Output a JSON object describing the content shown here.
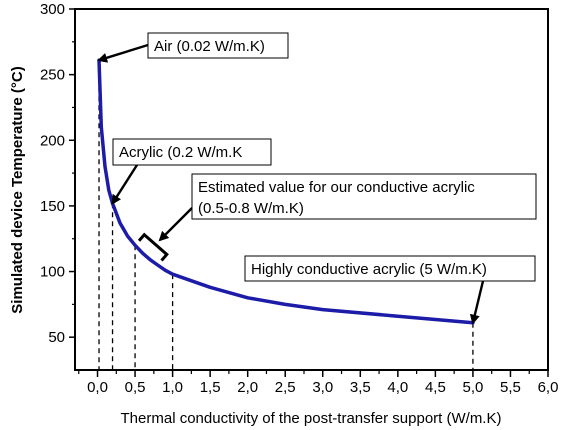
{
  "chart_data": {
    "type": "line",
    "xlabel": "Thermal conductivity of the post-transfer support (W/m.K)",
    "ylabel": "Simulated device Temperature (°C)",
    "xlim": [
      -0.3,
      6.0
    ],
    "ylim": [
      25,
      300
    ],
    "xticks": [
      0.0,
      0.5,
      1.0,
      1.5,
      2.0,
      2.5,
      3.0,
      3.5,
      4.0,
      4.5,
      5.0,
      5.5,
      6.0
    ],
    "xtick_labels": [
      "0,0",
      "0,5",
      "1,0",
      "1,5",
      "2,0",
      "2,5",
      "3,0",
      "3,5",
      "4,0",
      "4,5",
      "5,0",
      "5,5",
      "6,0"
    ],
    "yticks": [
      50,
      100,
      150,
      200,
      250,
      300
    ],
    "ytick_labels": [
      "50",
      "100",
      "150",
      "200",
      "250",
      "300"
    ],
    "grid": false,
    "legend": false,
    "series": [
      {
        "color": "#1c1ca8",
        "x": [
          0.02,
          0.05,
          0.1,
          0.15,
          0.2,
          0.3,
          0.4,
          0.5,
          0.6,
          0.7,
          0.8,
          0.9,
          1.0,
          1.5,
          2.0,
          2.5,
          3.0,
          4.0,
          5.0
        ],
        "y": [
          261,
          210,
          180,
          162,
          152,
          137,
          127,
          120,
          114,
          109,
          105,
          101,
          98,
          88,
          80,
          75,
          71,
          66,
          61
        ]
      }
    ],
    "dashed_markers": [
      {
        "x": 0.02,
        "y": 261
      },
      {
        "x": 0.2,
        "y": 152
      },
      {
        "x": 0.5,
        "y": 120
      },
      {
        "x": 1.0,
        "y": 98
      },
      {
        "x": 5.0,
        "y": 61
      }
    ],
    "bracket": {
      "x_start": 0.5,
      "x_end": 0.8
    },
    "annotations": [
      {
        "lines": [
          "Air (0.02 W/m.K)"
        ],
        "target_x": 0.02,
        "target_y": 261
      },
      {
        "lines": [
          "Acrylic (0.2 W/m.K"
        ],
        "target_x": 0.2,
        "target_y": 152
      },
      {
        "lines": [
          "Estimated value for our conductive acrylic",
          "(0.5-0.8 W/m.K)"
        ],
        "target_x": 0.65,
        "target_y": 116
      },
      {
        "lines": [
          "Highly conductive acrylic (5 W/m.K)"
        ],
        "target_x": 5.0,
        "target_y": 61
      }
    ]
  }
}
